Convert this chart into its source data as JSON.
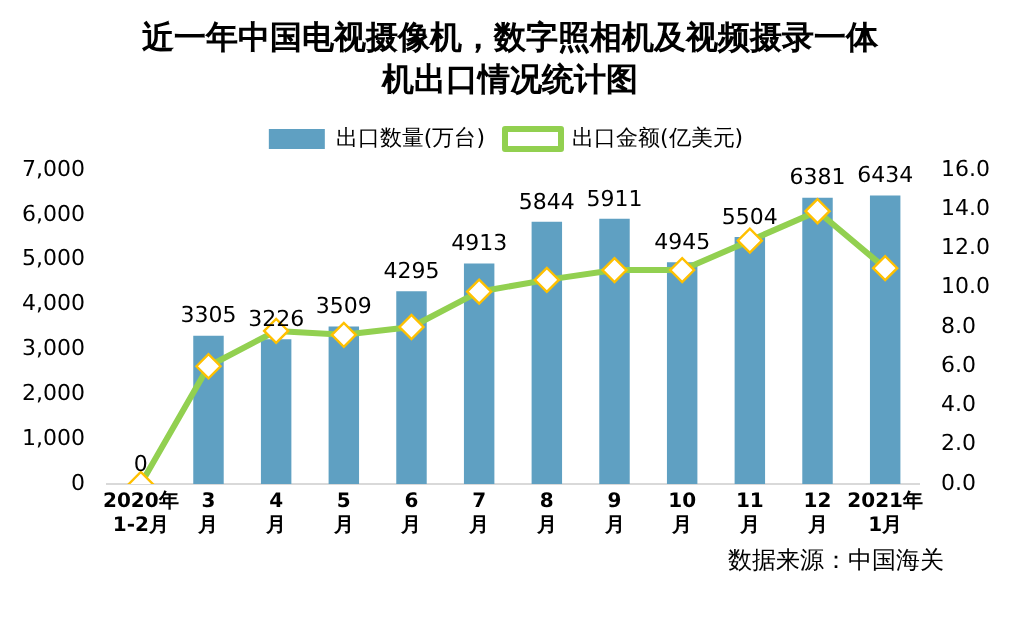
{
  "chart_data": {
    "type": "bar",
    "title": "近一年中国电视摄像机，数字照相机及视频摄录一体机出口情况统计图",
    "categories": [
      "2020年1-2月",
      "3月",
      "4月",
      "5月",
      "6月",
      "7月",
      "8月",
      "9月",
      "10月",
      "11月",
      "12月",
      "2021年1月"
    ],
    "series": [
      {
        "name": "出口数量(万台)",
        "color": "#5fa0c2",
        "values": [
          0,
          3305,
          3226,
          3509,
          4295,
          4913,
          5844,
          5911,
          4945,
          5504,
          6381,
          6434
        ],
        "value_labels": [
          "0",
          "3305",
          "3226",
          "3509",
          "4295",
          "4913",
          "5844",
          "5911",
          "4945",
          "5504",
          "6381",
          "6434"
        ]
      },
      {
        "name": "出口金额(亿美元)",
        "type": "line",
        "axis": "y2",
        "color": "#92d050",
        "marker": "diamond",
        "values": [
          0,
          6.0,
          7.8,
          7.6,
          8.0,
          9.8,
          10.4,
          10.9,
          10.9,
          12.4,
          13.9,
          11.0
        ]
      }
    ],
    "ylim": [
      0,
      7000
    ],
    "yticks": [
      {
        "value": 0,
        "label": "0"
      },
      {
        "value": 1000,
        "label": "1,000"
      },
      {
        "value": 2000,
        "label": "2,000"
      },
      {
        "value": 3000,
        "label": "3,000"
      },
      {
        "value": 4000,
        "label": "4,000"
      },
      {
        "value": 5000,
        "label": "5,000"
      },
      {
        "value": 6000,
        "label": "6,000"
      },
      {
        "value": 7000,
        "label": "7,000"
      }
    ],
    "y2lim": [
      0,
      16
    ],
    "y2ticks": [
      {
        "value": 0,
        "label": "0.0"
      },
      {
        "value": 2,
        "label": "2.0"
      },
      {
        "value": 4,
        "label": "4.0"
      },
      {
        "value": 6,
        "label": "6.0"
      },
      {
        "value": 8,
        "label": "8.0"
      },
      {
        "value": 10,
        "label": "10.0"
      },
      {
        "value": 12,
        "label": "12.0"
      },
      {
        "value": 14,
        "label": "14.0"
      },
      {
        "value": 16,
        "label": "16.0"
      }
    ],
    "legend": "top",
    "grid": false,
    "annotations": [
      "数据来源：中国海关"
    ]
  }
}
